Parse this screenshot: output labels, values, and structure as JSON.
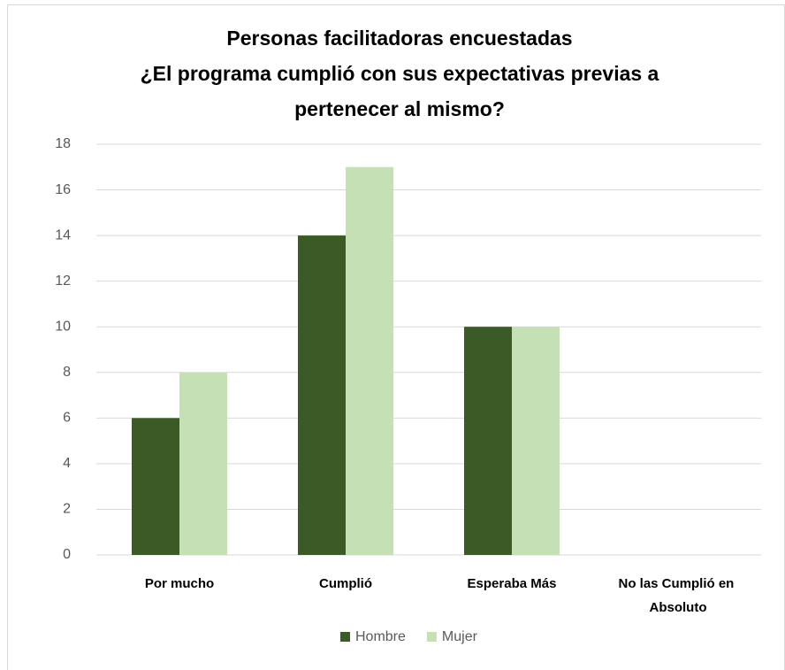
{
  "chart_data": {
    "type": "bar",
    "title": [
      "Personas facilitadoras encuestadas",
      "¿El programa cumplió con sus expectativas previas a",
      "pertenecer al mismo?"
    ],
    "categories": [
      "Por mucho",
      "Cumplió",
      "Esperaba Más",
      "No las Cumplió en Absoluto"
    ],
    "series": [
      {
        "name": "Hombre",
        "color": "#3b5a25",
        "values": [
          6,
          14,
          10,
          0
        ]
      },
      {
        "name": "Mujer",
        "color": "#c5e0b4",
        "values": [
          8,
          17,
          10,
          0
        ]
      }
    ],
    "ylim": [
      0,
      18
    ],
    "yticks": [
      0,
      2,
      4,
      6,
      8,
      10,
      12,
      14,
      16,
      18
    ],
    "grid": true,
    "legend": "bottom"
  }
}
